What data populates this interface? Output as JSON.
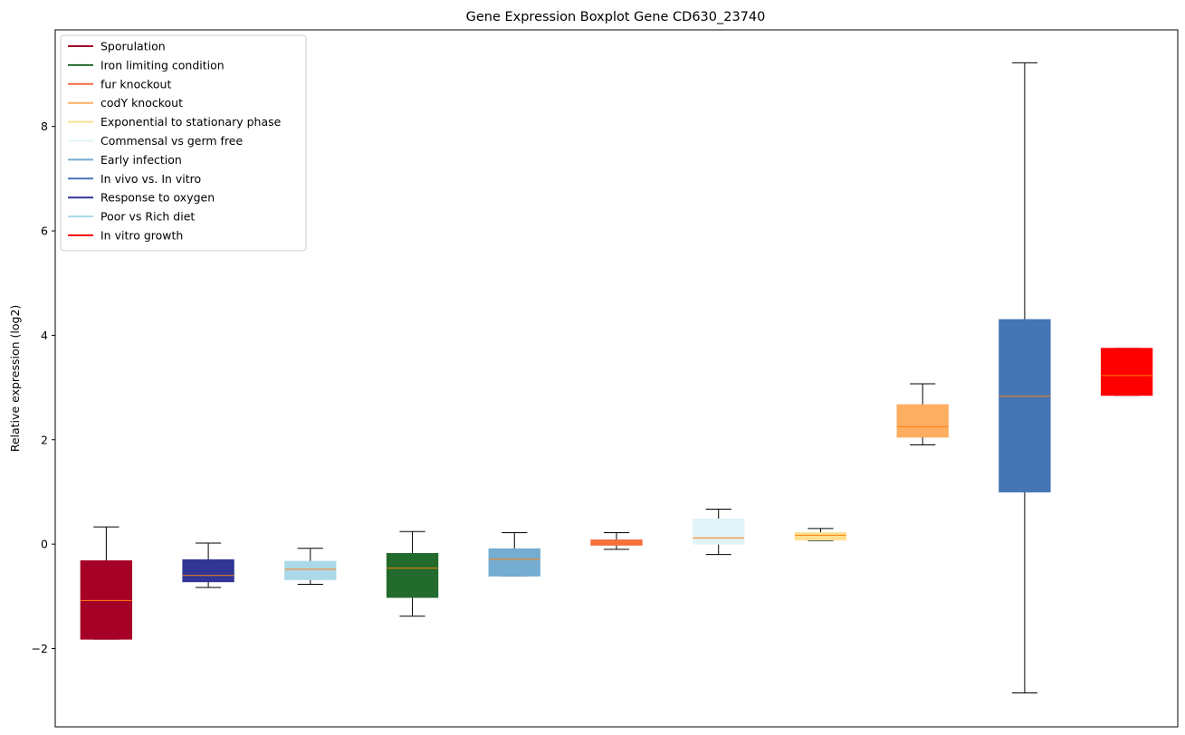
{
  "chart_data": {
    "type": "box",
    "title": "Gene Expression Boxplot Gene CD630_23740",
    "xlabel": "",
    "ylabel": "Relative expression (log2)",
    "ylim": [
      -3.5,
      9.85
    ],
    "yticks": [
      -2,
      0,
      2,
      4,
      6,
      8
    ],
    "ytick_labels": [
      "−2",
      "0",
      "2",
      "4",
      "6",
      "8"
    ],
    "legend_position": "top-left",
    "legend": [
      {
        "label": "Sporulation",
        "color": "#a50026"
      },
      {
        "label": "Iron limiting condition",
        "color": "#226b2c"
      },
      {
        "label": "fur knockout",
        "color": "#f46d43"
      },
      {
        "label": "codY knockout",
        "color": "#fdae61"
      },
      {
        "label": "Exponential to stationary phase",
        "color": "#fee090"
      },
      {
        "label": "Commensal vs germ free",
        "color": "#e0f3f8"
      },
      {
        "label": "Early infection",
        "color": "#74add1"
      },
      {
        "label": "In vivo vs. In vitro",
        "color": "#4575b4"
      },
      {
        "label": "Response to oxygen",
        "color": "#313695"
      },
      {
        "label": "Poor vs Rich diet",
        "color": "#abd9e9"
      },
      {
        "label": "In vitro growth",
        "color": "#ff0000"
      }
    ],
    "boxes": [
      {
        "condition": "Sporulation",
        "color": "#a50026",
        "whislo": -1.82,
        "q1": -1.82,
        "med": -1.08,
        "q3": -0.32,
        "whishi": 0.33
      },
      {
        "condition": "Response to oxygen",
        "color": "#313695",
        "whislo": -0.83,
        "q1": -0.72,
        "med": -0.6,
        "q3": -0.3,
        "whishi": 0.02
      },
      {
        "condition": "Poor vs Rich diet",
        "color": "#abd9e9",
        "whislo": -0.77,
        "q1": -0.68,
        "med": -0.48,
        "q3": -0.33,
        "whishi": -0.08
      },
      {
        "condition": "Iron limiting condition",
        "color": "#226b2c",
        "whislo": -1.38,
        "q1": -1.02,
        "med": -0.46,
        "q3": -0.18,
        "whishi": 0.24
      },
      {
        "condition": "Early infection",
        "color": "#74add1",
        "whislo": -0.61,
        "q1": -0.61,
        "med": -0.29,
        "q3": -0.09,
        "whishi": 0.22
      },
      {
        "condition": "fur knockout",
        "color": "#f46d43",
        "whislo": -0.1,
        "q1": -0.02,
        "med": 0.04,
        "q3": 0.08,
        "whishi": 0.22
      },
      {
        "condition": "Commensal vs germ free",
        "color": "#e0f3f8",
        "whislo": -0.2,
        "q1": 0.0,
        "med": 0.12,
        "q3": 0.48,
        "whishi": 0.67
      },
      {
        "condition": "Exponential to stationary phase",
        "color": "#fee090",
        "whislo": 0.07,
        "q1": 0.08,
        "med": 0.17,
        "q3": 0.22,
        "whishi": 0.3
      },
      {
        "condition": "codY knockout",
        "color": "#fdae61",
        "whislo": 1.9,
        "q1": 2.05,
        "med": 2.25,
        "q3": 2.67,
        "whishi": 3.07
      },
      {
        "condition": "In vivo vs. In vitro",
        "color": "#4575b4",
        "whislo": -2.85,
        "q1": 1.0,
        "med": 2.83,
        "q3": 4.3,
        "whishi": 9.22
      },
      {
        "condition": "In vitro growth",
        "color": "#ff0000",
        "whislo": 2.85,
        "q1": 2.85,
        "med": 3.23,
        "q3": 3.75,
        "whishi": 3.75
      }
    ],
    "median_color": "#ff7f0e",
    "grid": false
  }
}
